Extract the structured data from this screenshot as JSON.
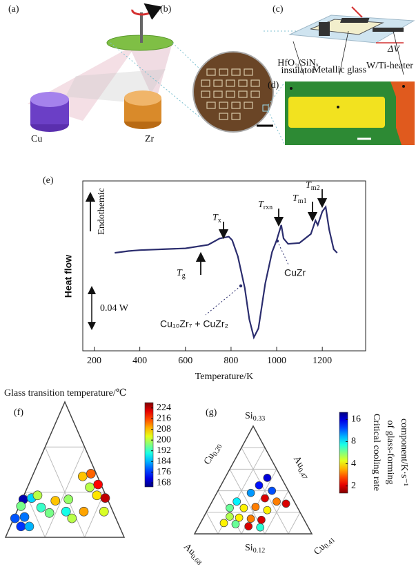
{
  "figure": {
    "panel_a": "(a)",
    "panel_b": "(b)",
    "panel_c": "(c)",
    "panel_d": "(d)",
    "cu": "Cu",
    "zr": "Zr",
    "insulator": [
      "HfO₂/SiNₓ",
      "insulator"
    ],
    "metallic_glass": "Metallic glass",
    "heater": "W/Ti-heater",
    "delta_v": "ΔV"
  },
  "chart_data": [
    {
      "type": "line",
      "panel": "(e)",
      "ylabel": "Heat flow",
      "xlabel": "Temperature/K",
      "color": "#2b2d6e",
      "x": [
        290,
        350,
        400,
        500,
        600,
        700,
        750,
        790,
        805,
        830,
        860,
        880,
        900,
        920,
        950,
        980,
        1000,
        1020,
        1030,
        1050,
        1100,
        1150,
        1170,
        1180,
        1200,
        1215,
        1230,
        1250,
        1265
      ],
      "values": [
        -0.006,
        -0.004,
        -0.003,
        -0.002,
        -0.001,
        0.003,
        0.01,
        0.012,
        0.008,
        -0.01,
        -0.045,
        -0.08,
        -0.1,
        -0.09,
        -0.04,
        -0.005,
        0.008,
        0.025,
        0.01,
        0.004,
        0.005,
        0.015,
        0.03,
        0.025,
        0.04,
        0.045,
        0.02,
        -0.002,
        -0.006
      ],
      "xlim": [
        150,
        1390
      ],
      "ylim": [
        -0.115,
        0.074
      ],
      "xticks": [
        200,
        400,
        600,
        800,
        1000,
        1200
      ],
      "annotations": {
        "endothermic": "Endothemic",
        "scale_bar": {
          "value": 0.04,
          "label": "0.04 W"
        },
        "tg": {
          "main": "T",
          "sub": "g"
        },
        "tx": {
          "main": "T",
          "sub": "x"
        },
        "trxn": {
          "main": "T",
          "sub": "rxn"
        },
        "tm1": {
          "main": "T",
          "sub": "m1"
        },
        "tm2": {
          "main": "T",
          "sub": "m2"
        },
        "cuzr": "CuZr",
        "mix": "Cu₁₀Zr₇ + CuZr₂"
      }
    },
    {
      "type": "ternary",
      "panel": "(f)",
      "title": "Glass transition temperature/℃",
      "x": [
        0.15,
        0.13,
        0.22,
        0.27,
        0.3,
        0.08,
        0.16,
        0.13,
        0.2,
        0.37,
        0.51,
        0.56,
        0.42,
        0.53,
        0.65,
        0.72,
        0.71,
        0.78,
        0.77,
        0.84,
        0.83,
        0.66
      ],
      "y": [
        0.28,
        0.23,
        0.29,
        0.31,
        0.22,
        0.14,
        0.15,
        0.08,
        0.08,
        0.18,
        0.19,
        0.14,
        0.27,
        0.28,
        0.45,
        0.47,
        0.37,
        0.39,
        0.31,
        0.29,
        0.19,
        0.19
      ],
      "values": [
        168,
        196,
        186,
        200,
        192,
        178,
        180,
        176,
        184,
        196,
        190,
        200,
        208,
        198,
        208,
        214,
        200,
        220,
        206,
        224,
        202,
        210
      ],
      "colormap": "jet",
      "clim": [
        165,
        228
      ],
      "clog": false,
      "cticks": [
        224,
        216,
        208,
        200,
        192,
        184,
        176,
        168
      ]
    },
    {
      "type": "ternary",
      "panel": "(g)",
      "colorbar_label": [
        "Critical cooling rate",
        "of glass-forming",
        "component/K·s⁻¹"
      ],
      "corner_labels": [
        {
          "main": "Si",
          "sub": "0.33"
        },
        {
          "main": "Cu",
          "sub": "0.20"
        },
        {
          "main": "Au",
          "sub": "0.47"
        },
        {
          "main": "Au",
          "sub": "0.68"
        },
        {
          "main": "Si",
          "sub": "0.12"
        },
        {
          "main": "Cu",
          "sub": "0.41"
        }
      ],
      "x": [
        0.62,
        0.55,
        0.66,
        0.48,
        0.6,
        0.7,
        0.78,
        0.36,
        0.3,
        0.42,
        0.52,
        0.62,
        0.3,
        0.38,
        0.48,
        0.57,
        0.25,
        0.35,
        0.46,
        0.56
      ],
      "y": [
        0.52,
        0.45,
        0.4,
        0.38,
        0.33,
        0.3,
        0.28,
        0.3,
        0.24,
        0.24,
        0.25,
        0.22,
        0.16,
        0.15,
        0.14,
        0.13,
        0.1,
        0.09,
        0.07,
        0.06
      ],
      "values": [
        16,
        14,
        12,
        10,
        2,
        3,
        2,
        8,
        6,
        4,
        3,
        4,
        5,
        4,
        3,
        2,
        4,
        6,
        2,
        7
      ],
      "colormap": "jet_r",
      "clim": [
        1.6,
        20
      ],
      "clog": true,
      "cticks": [
        16,
        8,
        4,
        2
      ]
    }
  ]
}
